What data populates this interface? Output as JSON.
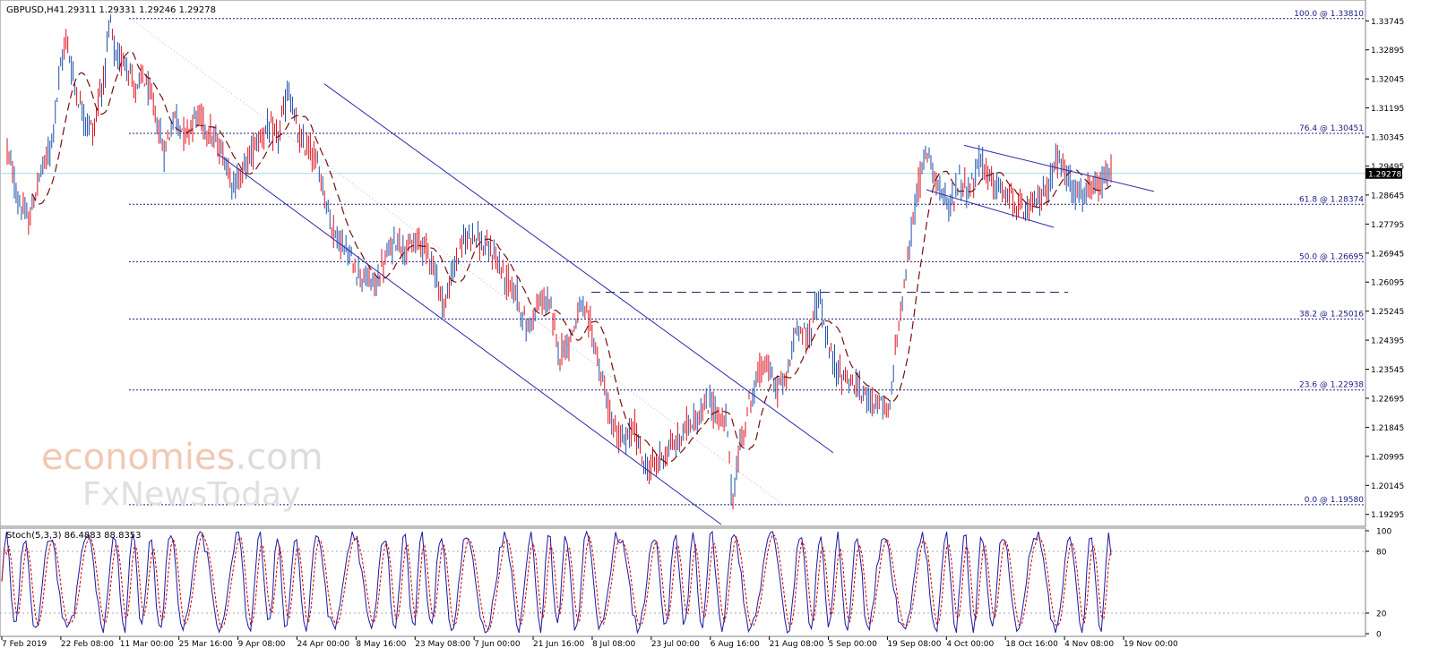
{
  "header": {
    "symbol": "GBPUSD,H4",
    "ohlc": "1.29311 1.29331 1.29246 1.29278"
  },
  "watermark": {
    "brand_main": "economies",
    "brand_suffix": ".com",
    "brand_sub": "FxNewsToday"
  },
  "colors": {
    "bull": "#1f4fa8",
    "bear": "#e0101a",
    "ma": "#7a0c0c",
    "fib": "#1a1a80",
    "channel": "#2a2ab0",
    "bid_line": "#9fd7e6",
    "price_tag_bg": "#000000",
    "stoch_main": "#1a1aa0",
    "stoch_signal": "#d00000"
  },
  "chart_data": [
    {
      "type": "line",
      "title": "GBPUSD,H4",
      "ylim": [
        1.19,
        1.3425
      ],
      "yticks": [
        "1.33745",
        "1.32895",
        "1.32045",
        "1.31195",
        "1.30345",
        "1.29495",
        "1.28645",
        "1.27795",
        "1.26945",
        "1.26095",
        "1.25245",
        "1.24395",
        "1.23545",
        "1.22695",
        "1.21845",
        "1.20995",
        "1.20145",
        "1.19295"
      ],
      "xticks": [
        "7 Feb 2019",
        "22 Feb 08:00",
        "11 Mar 00:00",
        "25 Mar 16:00",
        "9 Apr 08:00",
        "24 Apr 00:00",
        "8 May 16:00",
        "23 May 08:00",
        "7 Jun 00:00",
        "21 Jun 16:00",
        "8 Jul 08:00",
        "23 Jul 00:00",
        "6 Aug 16:00",
        "21 Aug 08:00",
        "5 Sep 00:00",
        "19 Sep 08:00",
        "4 Oct 00:00",
        "18 Oct 16:00",
        "4 Nov 08:00",
        "19 Nov 00:00"
      ],
      "current_price": 1.29278,
      "current_price_label": "1.29278",
      "fibonacci": [
        {
          "label": "100.0 @ 1.33810",
          "price": 1.3381
        },
        {
          "label": "76.4 @ 1.30451",
          "price": 1.30451
        },
        {
          "label": "61.8 @ 1.28374",
          "price": 1.28374
        },
        {
          "label": "50.0 @ 1.26695",
          "price": 1.26695
        },
        {
          "label": "38.2 @ 1.25016",
          "price": 1.25016
        },
        {
          "label": "23.6 @ 1.22938",
          "price": 1.22938
        },
        {
          "label": "0.0 @ 1.19580",
          "price": 1.1958
        }
      ],
      "resistance_level": 1.258,
      "price_path": [
        [
          0,
          1.3
        ],
        [
          2,
          1.285
        ],
        [
          4,
          1.2785
        ],
        [
          6,
          1.292
        ],
        [
          8,
          1.3
        ],
        [
          10,
          1.325
        ],
        [
          11,
          1.333
        ],
        [
          12,
          1.322
        ],
        [
          14,
          1.31
        ],
        [
          16,
          1.305
        ],
        [
          17,
          1.316
        ],
        [
          18,
          1.321
        ],
        [
          19,
          1.3379
        ],
        [
          20,
          1.326
        ],
        [
          22,
          1.326
        ],
        [
          24,
          1.316
        ],
        [
          25,
          1.322
        ],
        [
          27,
          1.3125
        ],
        [
          29,
          1.299
        ],
        [
          31,
          1.31
        ],
        [
          33,
          1.304
        ],
        [
          35,
          1.31
        ],
        [
          37,
          1.306
        ],
        [
          40,
          1.298
        ],
        [
          42,
          1.289
        ],
        [
          44,
          1.295
        ],
        [
          46,
          1.302
        ],
        [
          48,
          1.306
        ],
        [
          50,
          1.303
        ],
        [
          52,
          1.3175
        ],
        [
          54,
          1.302
        ],
        [
          56,
          1.3
        ],
        [
          58,
          1.292
        ],
        [
          60,
          1.277
        ],
        [
          62,
          1.272
        ],
        [
          64,
          1.266
        ],
        [
          66,
          1.262
        ],
        [
          68,
          1.26
        ],
        [
          70,
          1.268
        ],
        [
          72,
          1.274
        ],
        [
          74,
          1.27
        ],
        [
          76,
          1.273
        ],
        [
          78,
          1.27
        ],
        [
          80,
          1.258
        ],
        [
          81,
          1.254
        ],
        [
          82,
          1.262
        ],
        [
          84,
          1.272
        ],
        [
          86,
          1.276
        ],
        [
          88,
          1.271
        ],
        [
          90,
          1.269
        ],
        [
          92,
          1.262
        ],
        [
          94,
          1.258
        ],
        [
          96,
          1.247
        ],
        [
          98,
          1.254
        ],
        [
          100,
          1.256
        ],
        [
          102,
          1.24
        ],
        [
          104,
          1.244
        ],
        [
          106,
          1.254
        ],
        [
          108,
          1.247
        ],
        [
          110,
          1.232
        ],
        [
          112,
          1.218
        ],
        [
          114,
          1.214
        ],
        [
          116,
          1.218
        ],
        [
          118,
          1.206
        ],
        [
          120,
          1.208
        ],
        [
          122,
          1.212
        ],
        [
          124,
          1.214
        ],
        [
          126,
          1.22
        ],
        [
          128,
          1.222
        ],
        [
          130,
          1.226
        ],
        [
          132,
          1.22
        ],
        [
          133,
          1.22
        ],
        [
          134,
          1.196
        ],
        [
          135,
          1.208
        ],
        [
          136,
          1.218
        ],
        [
          138,
          1.23
        ],
        [
          140,
          1.238
        ],
        [
          142,
          1.23
        ],
        [
          144,
          1.232
        ],
        [
          146,
          1.249
        ],
        [
          148,
          1.244
        ],
        [
          150,
          1.257
        ],
        [
          152,
          1.24
        ],
        [
          154,
          1.234
        ],
        [
          156,
          1.232
        ],
        [
          158,
          1.228
        ],
        [
          160,
          1.227
        ],
        [
          162,
          1.224
        ],
        [
          163,
          1.221
        ],
        [
          164,
          1.24
        ],
        [
          166,
          1.262
        ],
        [
          168,
          1.286
        ],
        [
          170,
          1.3
        ],
        [
          172,
          1.29
        ],
        [
          174,
          1.282
        ],
        [
          176,
          1.291
        ],
        [
          178,
          1.288
        ],
        [
          180,
          1.297
        ],
        [
          182,
          1.29
        ],
        [
          184,
          1.287
        ],
        [
          186,
          1.285
        ],
        [
          188,
          1.281
        ],
        [
          190,
          1.284
        ],
        [
          192,
          1.288
        ],
        [
          194,
          1.297
        ],
        [
          196,
          1.292
        ],
        [
          198,
          1.286
        ],
        [
          200,
          1.287
        ],
        [
          202,
          1.289
        ],
        [
          204,
          1.2928
        ]
      ]
    },
    {
      "type": "line",
      "title": "Stoch(5,3,3) 86.4883 88.8353",
      "ylim": [
        0,
        100
      ],
      "yticks": [
        "100",
        "80",
        "20",
        "0"
      ],
      "levels": [
        80,
        20
      ]
    }
  ]
}
